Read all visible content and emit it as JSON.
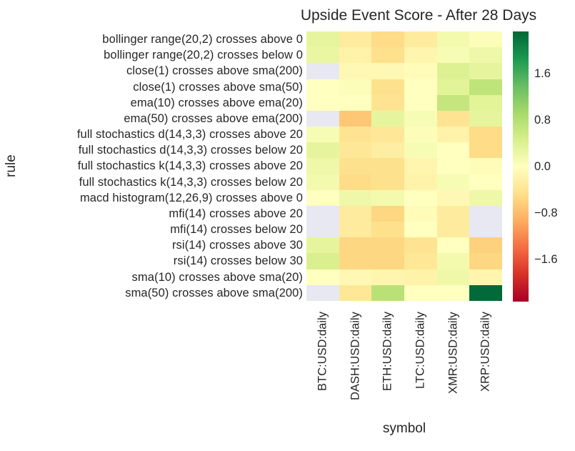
{
  "chart_data": {
    "type": "heatmap",
    "title": "Upside Event Score - After 28 Days",
    "xlabel": "symbol",
    "ylabel": "rule",
    "grid": false,
    "legend_position": "right-colorbar",
    "text_color": "#262626",
    "missing_value_color": "#e8e8f2",
    "columns": [
      "BTC:USD:daily",
      "DASH:USD:daily",
      "ETH:USD:daily",
      "LTC:USD:daily",
      "XMR:USD:daily",
      "XRP:USD:daily"
    ],
    "rows": [
      "bollinger range(20,2) crosses above 0",
      "bollinger range(20,2) crosses below 0",
      "close(1) crosses above sma(200)",
      "close(1) crosses above sma(50)",
      "ema(10) crosses above ema(20)",
      "ema(50) crosses above ema(200)",
      "full stochastics d(14,3,3) crosses above 20",
      "full stochastics d(14,3,3) crosses below 20",
      "full stochastics k(14,3,3) crosses above 20",
      "full stochastics k(14,3,3) crosses below 20",
      "macd histogram(12,26,9) crosses above 0",
      "mfi(14) crosses above 20",
      "mfi(14) crosses below 20",
      "rsi(14) crosses above 30",
      "rsi(14) crosses below 30",
      "sma(10) crosses above sma(20)",
      "sma(50) crosses above sma(200)"
    ],
    "values": [
      [
        0.3,
        -0.3,
        -0.5,
        -0.3,
        0.15,
        0.05
      ],
      [
        0.25,
        -0.2,
        -0.45,
        -0.15,
        0.1,
        0.2
      ],
      [
        null,
        -0.1,
        -0.1,
        -0.05,
        0.4,
        0.3
      ],
      [
        0.0,
        0.05,
        -0.45,
        0.0,
        0.35,
        0.7
      ],
      [
        0.0,
        0.0,
        -0.4,
        0.0,
        0.65,
        0.35
      ],
      [
        null,
        -0.7,
        0.3,
        0.1,
        -0.4,
        0.3
      ],
      [
        0.1,
        -0.4,
        -0.35,
        0.05,
        -0.2,
        -0.5
      ],
      [
        0.3,
        -0.35,
        -0.25,
        0.1,
        0.0,
        -0.5
      ],
      [
        0.2,
        -0.45,
        -0.45,
        -0.15,
        0.0,
        -0.05
      ],
      [
        0.15,
        -0.5,
        -0.45,
        -0.2,
        0.1,
        0.0
      ],
      [
        0.0,
        0.2,
        0.15,
        0.0,
        -0.1,
        0.2
      ],
      [
        null,
        -0.3,
        -0.55,
        -0.05,
        -0.3,
        null
      ],
      [
        null,
        -0.3,
        -0.45,
        0.0,
        -0.3,
        null
      ],
      [
        0.3,
        -0.55,
        -0.55,
        -0.4,
        0.0,
        -0.6
      ],
      [
        0.45,
        -0.55,
        -0.55,
        -0.35,
        0.15,
        -0.55
      ],
      [
        0.0,
        -0.1,
        -0.15,
        -0.2,
        0.2,
        -0.15
      ],
      [
        null,
        -0.35,
        0.75,
        0.0,
        0.0,
        2.3
      ]
    ],
    "colormap": {
      "name": "RdYlGn",
      "vmin": -2.32,
      "vmax": 2.32,
      "stops": [
        [
          0.0,
          "#a50026"
        ],
        [
          0.1,
          "#d73027"
        ],
        [
          0.2,
          "#f46d43"
        ],
        [
          0.3,
          "#fdae61"
        ],
        [
          0.4,
          "#fee08b"
        ],
        [
          0.5,
          "#ffffbf"
        ],
        [
          0.6,
          "#d9ef8b"
        ],
        [
          0.7,
          "#a6d96a"
        ],
        [
          0.8,
          "#66bd63"
        ],
        [
          0.9,
          "#1a9850"
        ],
        [
          1.0,
          "#006837"
        ]
      ]
    },
    "colorbar_ticks": [
      "1.6",
      "0.8",
      "0.0",
      "−0.8",
      "−1.6"
    ],
    "colorbar_tick_values": [
      1.6,
      0.8,
      0.0,
      -0.8,
      -1.6
    ]
  }
}
